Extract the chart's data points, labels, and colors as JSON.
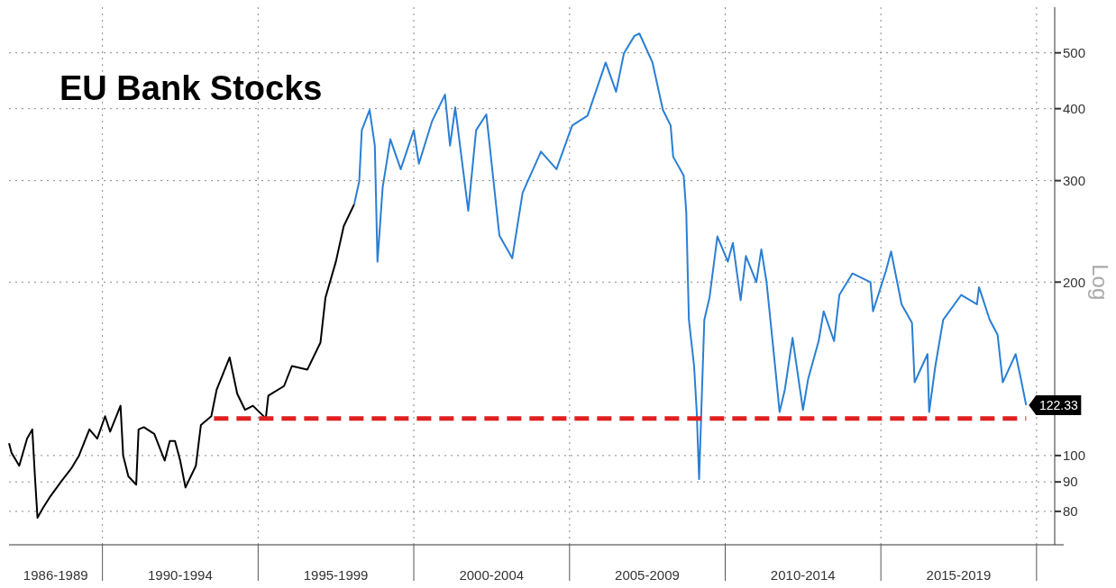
{
  "chart_data": {
    "type": "line",
    "title": "EU Bank Stocks",
    "ylabel": "Log",
    "log": "y",
    "grid": true,
    "marker": "none",
    "xlim": [
      "1987-01",
      "2020-08"
    ],
    "ylim": [
      70,
      600
    ],
    "yticks": [
      80,
      90,
      100,
      200,
      300,
      400,
      500
    ],
    "xticks": [
      {
        "value": "1988-07",
        "label": "1986-1989"
      },
      {
        "value": "1990-01",
        "label": null
      },
      {
        "value": "1992-07",
        "label": "1990-1994"
      },
      {
        "value": "1995-01",
        "label": null
      },
      {
        "value": "1997-07",
        "label": "1995-1999"
      },
      {
        "value": "2000-01",
        "label": null
      },
      {
        "value": "2002-07",
        "label": "2000-2004"
      },
      {
        "value": "2005-01",
        "label": null
      },
      {
        "value": "2007-07",
        "label": "2005-2009"
      },
      {
        "value": "2010-01",
        "label": null
      },
      {
        "value": "2012-07",
        "label": "2010-2014"
      },
      {
        "value": "2015-01",
        "label": null
      },
      {
        "value": "2017-07",
        "label": "2015-2019"
      },
      {
        "value": "2020-01",
        "label": null
      }
    ],
    "annotations": [
      {
        "text": "122.33",
        "x": "2019-09",
        "y": 122.33
      }
    ],
    "series": [
      {
        "color": "#000000",
        "x": [
          "1987-01",
          "1987-02",
          "1987-05",
          "1987-08",
          "1987-10",
          "1987-11",
          "1987-12",
          "1988-02",
          "1988-05",
          "1988-09",
          "1989-01",
          "1989-04",
          "1989-08",
          "1989-11",
          "1990-02",
          "1990-04",
          "1990-08",
          "1990-09",
          "1990-11",
          "1991-02",
          "1991-03",
          "1991-05",
          "1991-09",
          "1992-01",
          "1992-03",
          "1992-05",
          "1992-07",
          "1992-09",
          "1993-01",
          "1993-03",
          "1993-07",
          "1993-09",
          "1994-02",
          "1994-05",
          "1994-08",
          "1994-11",
          "1995-04",
          "1995-05",
          "1995-11",
          "1996-02",
          "1996-08",
          "1997-01",
          "1997-03",
          "1997-07",
          "1997-10",
          "1998-02"
        ],
        "values": [
          105,
          101,
          96,
          107,
          111,
          92,
          78,
          81,
          85,
          90,
          95,
          100,
          111,
          107,
          117,
          110,
          122,
          100,
          92,
          89,
          111,
          112,
          109,
          98,
          106,
          106,
          98,
          88,
          96,
          113,
          117,
          130,
          148,
          128,
          120,
          122,
          116,
          127,
          132,
          143,
          141,
          157,
          188,
          217,
          250,
          273
        ]
      },
      {
        "color": "#2a7fd4",
        "x": [
          "1998-02",
          "1998-04",
          "1998-05",
          "1998-08",
          "1998-10",
          "1998-11",
          "1999-01",
          "1999-04",
          "1999-08",
          "2000-01",
          "2000-03",
          "2000-08",
          "2001-01",
          "2001-03",
          "2001-05",
          "2001-10",
          "2002-01",
          "2002-05",
          "2002-10",
          "2003-03",
          "2003-07",
          "2004-02",
          "2004-08",
          "2005-02",
          "2005-08",
          "2006-03",
          "2006-07",
          "2006-10",
          "2007-02",
          "2007-04",
          "2007-09",
          "2008-01",
          "2008-04",
          "2008-05",
          "2008-09",
          "2008-10",
          "2008-11",
          "2009-01",
          "2009-02",
          "2009-03",
          "2009-04",
          "2009-05",
          "2009-07",
          "2009-10",
          "2010-02",
          "2010-04",
          "2010-07",
          "2010-09",
          "2011-01",
          "2011-03",
          "2011-05",
          "2011-08",
          "2011-10",
          "2011-12",
          "2012-03",
          "2012-07",
          "2012-09",
          "2013-01",
          "2013-03",
          "2013-07",
          "2013-09",
          "2014-02",
          "2014-09",
          "2014-10",
          "2015-03",
          "2015-05",
          "2015-09",
          "2016-01",
          "2016-02",
          "2016-07-01",
          "2016-07-20",
          "2016-10",
          "2017-01",
          "2017-08",
          "2018-02",
          "2018-02-25",
          "2018-07",
          "2018-10",
          "2018-12",
          "2019-05",
          "2019-07",
          "2019-09"
        ],
        "values": [
          273,
          299,
          367,
          398,
          345,
          217,
          292,
          354,
          314,
          367,
          321,
          380,
          423,
          345,
          402,
          266,
          367,
          391,
          241,
          220,
          286,
          337,
          314,
          374,
          389,
          481,
          428,
          499,
          535,
          540,
          481,
          398,
          374,
          330,
          306,
          265,
          172,
          143,
          119,
          91,
          126,
          172,
          188,
          240,
          217,
          234,
          186,
          222,
          200,
          228,
          200,
          147,
          119,
          130,
          160,
          120,
          136,
          158,
          178,
          158,
          190,
          207,
          200,
          178,
          209,
          226,
          183,
          170,
          134,
          150,
          119,
          143,
          172,
          190,
          183,
          196,
          172,
          162,
          134,
          150,
          136,
          122.33
        ]
      },
      {
        "color": "#e02020",
        "line_style": "dashed",
        "x": [
          "1993-08",
          "2019-09"
        ],
        "values": [
          116,
          116
        ]
      }
    ]
  }
}
